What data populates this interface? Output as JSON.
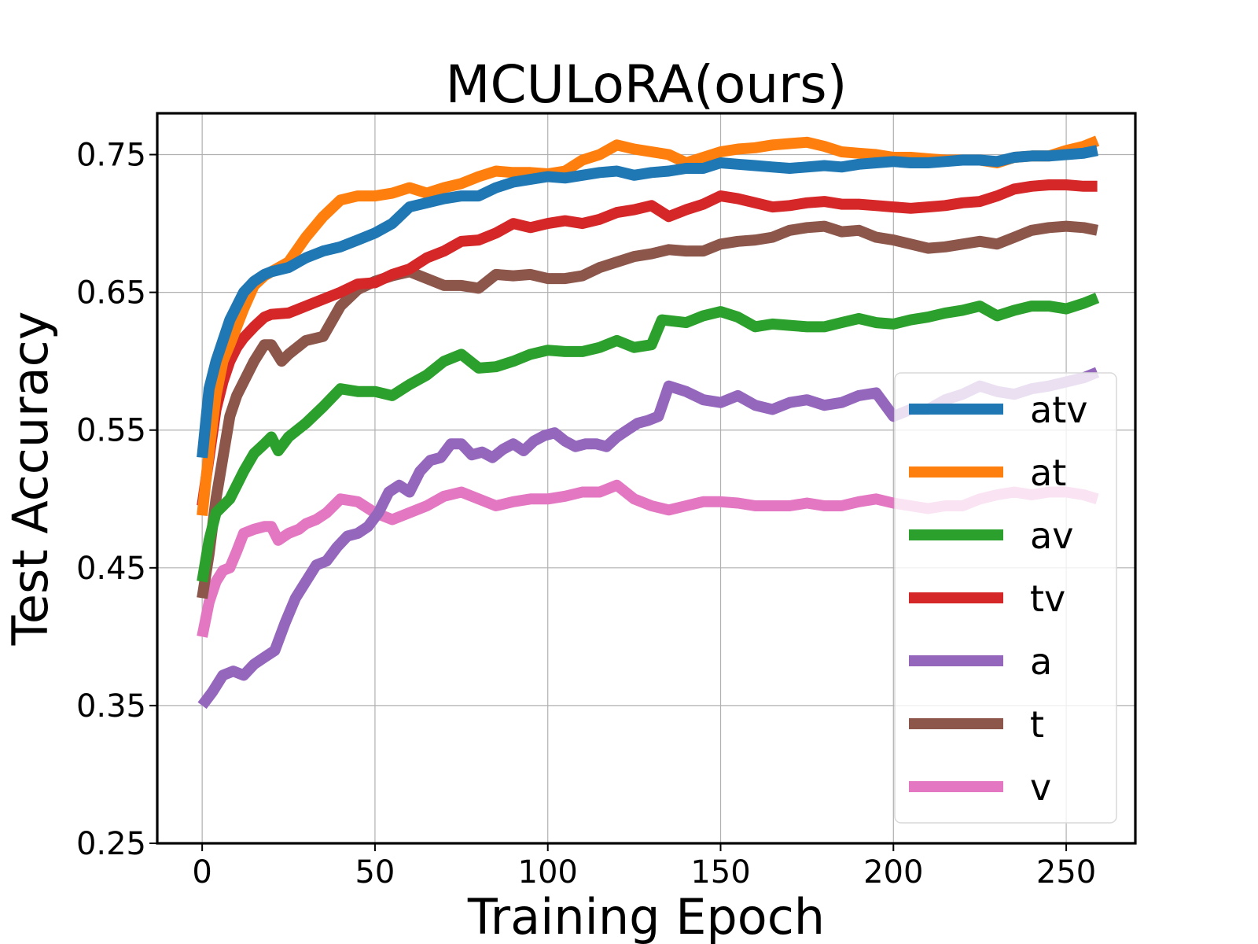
{
  "chart_data": {
    "type": "line",
    "title": "MCULoRA(ours)",
    "xlabel": "Training Epoch",
    "ylabel": "Test Accuracy",
    "xlim": [
      -13,
      270
    ],
    "ylim": [
      0.25,
      0.78
    ],
    "xticks": [
      0,
      50,
      100,
      150,
      200,
      250
    ],
    "xtick_labels": [
      "0",
      "50",
      "100",
      "150",
      "200",
      "250"
    ],
    "yticks": [
      0.25,
      0.35,
      0.45,
      0.55,
      0.65,
      0.75
    ],
    "ytick_labels": [
      "0.25",
      "0.35",
      "0.45",
      "0.55",
      "0.65",
      "0.75"
    ],
    "grid": true,
    "legend_position": "lower-right",
    "series": [
      {
        "name": "atv",
        "color": "#1f77b4",
        "x": [
          0,
          2,
          4,
          6,
          8,
          10,
          12,
          15,
          18,
          20,
          25,
          30,
          35,
          40,
          45,
          50,
          55,
          60,
          65,
          70,
          75,
          80,
          85,
          90,
          95,
          100,
          105,
          110,
          115,
          120,
          125,
          130,
          135,
          140,
          145,
          150,
          155,
          160,
          165,
          170,
          175,
          180,
          185,
          190,
          195,
          200,
          205,
          210,
          215,
          220,
          225,
          230,
          235,
          240,
          245,
          250,
          255,
          259
        ],
        "y": [
          0.53,
          0.58,
          0.6,
          0.615,
          0.63,
          0.64,
          0.65,
          0.658,
          0.663,
          0.665,
          0.668,
          0.675,
          0.68,
          0.683,
          0.688,
          0.693,
          0.7,
          0.712,
          0.715,
          0.718,
          0.72,
          0.72,
          0.726,
          0.73,
          0.732,
          0.734,
          0.733,
          0.735,
          0.737,
          0.738,
          0.735,
          0.737,
          0.738,
          0.74,
          0.74,
          0.744,
          0.743,
          0.742,
          0.741,
          0.74,
          0.741,
          0.742,
          0.741,
          0.743,
          0.744,
          0.745,
          0.744,
          0.744,
          0.745,
          0.746,
          0.746,
          0.745,
          0.748,
          0.749,
          0.749,
          0.75,
          0.751,
          0.753
        ]
      },
      {
        "name": "at",
        "color": "#ff7f0e",
        "x": [
          0,
          2,
          4,
          6,
          8,
          10,
          12,
          15,
          18,
          20,
          25,
          30,
          35,
          40,
          45,
          50,
          55,
          60,
          65,
          70,
          75,
          80,
          85,
          90,
          95,
          100,
          105,
          110,
          115,
          120,
          125,
          130,
          135,
          140,
          145,
          150,
          155,
          160,
          165,
          170,
          175,
          180,
          185,
          190,
          195,
          200,
          205,
          210,
          215,
          220,
          225,
          230,
          235,
          240,
          245,
          250,
          255,
          259
        ],
        "y": [
          0.488,
          0.535,
          0.575,
          0.6,
          0.612,
          0.625,
          0.638,
          0.655,
          0.662,
          0.665,
          0.672,
          0.69,
          0.705,
          0.717,
          0.72,
          0.72,
          0.722,
          0.726,
          0.722,
          0.726,
          0.729,
          0.734,
          0.738,
          0.737,
          0.737,
          0.736,
          0.738,
          0.746,
          0.75,
          0.757,
          0.754,
          0.752,
          0.75,
          0.744,
          0.748,
          0.752,
          0.754,
          0.755,
          0.757,
          0.758,
          0.759,
          0.756,
          0.752,
          0.751,
          0.75,
          0.748,
          0.748,
          0.747,
          0.746,
          0.746,
          0.746,
          0.744,
          0.748,
          0.749,
          0.749,
          0.753,
          0.756,
          0.76
        ]
      },
      {
        "name": "av",
        "color": "#2ca02c",
        "x": [
          0,
          2,
          4,
          6,
          8,
          10,
          12,
          15,
          18,
          20,
          22,
          25,
          30,
          35,
          40,
          45,
          50,
          55,
          60,
          65,
          70,
          75,
          80,
          85,
          90,
          95,
          100,
          105,
          110,
          115,
          120,
          125,
          130,
          133,
          140,
          145,
          150,
          155,
          160,
          165,
          170,
          175,
          180,
          185,
          190,
          195,
          200,
          205,
          210,
          215,
          220,
          225,
          230,
          235,
          240,
          245,
          250,
          255,
          259
        ],
        "y": [
          0.44,
          0.47,
          0.49,
          0.495,
          0.5,
          0.51,
          0.52,
          0.533,
          0.54,
          0.545,
          0.535,
          0.545,
          0.555,
          0.567,
          0.58,
          0.578,
          0.578,
          0.575,
          0.583,
          0.59,
          0.6,
          0.605,
          0.595,
          0.596,
          0.6,
          0.605,
          0.608,
          0.607,
          0.607,
          0.61,
          0.615,
          0.61,
          0.612,
          0.63,
          0.628,
          0.633,
          0.636,
          0.632,
          0.625,
          0.627,
          0.626,
          0.625,
          0.625,
          0.628,
          0.631,
          0.628,
          0.627,
          0.63,
          0.632,
          0.635,
          0.637,
          0.64,
          0.633,
          0.637,
          0.64,
          0.64,
          0.638,
          0.642,
          0.646
        ]
      },
      {
        "name": "tv",
        "color": "#d62728",
        "x": [
          0,
          2,
          4,
          6,
          8,
          10,
          12,
          15,
          18,
          20,
          25,
          30,
          35,
          40,
          45,
          50,
          55,
          60,
          65,
          70,
          75,
          80,
          85,
          90,
          95,
          100,
          105,
          110,
          115,
          120,
          125,
          130,
          135,
          140,
          145,
          150,
          155,
          160,
          165,
          170,
          175,
          180,
          185,
          190,
          195,
          200,
          205,
          210,
          215,
          220,
          225,
          230,
          235,
          240,
          245,
          250,
          255,
          259
        ],
        "y": [
          0.495,
          0.53,
          0.565,
          0.585,
          0.6,
          0.61,
          0.617,
          0.625,
          0.632,
          0.634,
          0.635,
          0.64,
          0.645,
          0.65,
          0.656,
          0.657,
          0.663,
          0.667,
          0.675,
          0.68,
          0.687,
          0.688,
          0.693,
          0.7,
          0.697,
          0.7,
          0.702,
          0.7,
          0.703,
          0.708,
          0.71,
          0.713,
          0.705,
          0.71,
          0.714,
          0.72,
          0.718,
          0.715,
          0.712,
          0.713,
          0.715,
          0.716,
          0.714,
          0.714,
          0.713,
          0.712,
          0.711,
          0.712,
          0.713,
          0.715,
          0.716,
          0.72,
          0.725,
          0.727,
          0.728,
          0.728,
          0.727,
          0.727
        ]
      },
      {
        "name": "a",
        "color": "#9467bd",
        "x": [
          0,
          3,
          6,
          9,
          12,
          15,
          18,
          21,
          24,
          27,
          30,
          33,
          36,
          39,
          42,
          45,
          48,
          51,
          54,
          57,
          60,
          63,
          66,
          69,
          72,
          75,
          78,
          81,
          84,
          87,
          90,
          93,
          96,
          99,
          102,
          105,
          108,
          111,
          114,
          117,
          120,
          123,
          126,
          129,
          132,
          135,
          140,
          145,
          150,
          155,
          160,
          165,
          170,
          175,
          180,
          185,
          190,
          195,
          200,
          205,
          210,
          215,
          220,
          225,
          230,
          235,
          240,
          245,
          250,
          255,
          259
        ],
        "y": [
          0.35,
          0.36,
          0.372,
          0.375,
          0.372,
          0.38,
          0.385,
          0.39,
          0.41,
          0.428,
          0.44,
          0.452,
          0.455,
          0.465,
          0.473,
          0.475,
          0.48,
          0.49,
          0.505,
          0.51,
          0.505,
          0.52,
          0.528,
          0.53,
          0.54,
          0.54,
          0.532,
          0.534,
          0.53,
          0.536,
          0.54,
          0.535,
          0.542,
          0.546,
          0.548,
          0.542,
          0.538,
          0.54,
          0.54,
          0.538,
          0.545,
          0.55,
          0.555,
          0.557,
          0.56,
          0.582,
          0.578,
          0.572,
          0.57,
          0.575,
          0.568,
          0.565,
          0.57,
          0.572,
          0.568,
          0.57,
          0.575,
          0.577,
          0.56,
          0.565,
          0.565,
          0.572,
          0.576,
          0.582,
          0.578,
          0.576,
          0.58,
          0.582,
          0.585,
          0.588,
          0.592
        ]
      },
      {
        "name": "t",
        "color": "#8c564b",
        "x": [
          0,
          2,
          4,
          6,
          8,
          10,
          12,
          15,
          18,
          20,
          23,
          25,
          30,
          35,
          40,
          45,
          50,
          55,
          60,
          65,
          70,
          75,
          80,
          85,
          90,
          95,
          100,
          105,
          110,
          115,
          120,
          125,
          130,
          135,
          140,
          145,
          150,
          155,
          160,
          165,
          170,
          175,
          180,
          185,
          190,
          195,
          200,
          205,
          210,
          215,
          220,
          225,
          230,
          235,
          240,
          245,
          250,
          255,
          259
        ],
        "y": [
          0.428,
          0.46,
          0.5,
          0.53,
          0.56,
          0.575,
          0.585,
          0.6,
          0.612,
          0.612,
          0.6,
          0.605,
          0.615,
          0.618,
          0.64,
          0.652,
          0.658,
          0.662,
          0.665,
          0.66,
          0.655,
          0.655,
          0.653,
          0.663,
          0.662,
          0.663,
          0.66,
          0.66,
          0.662,
          0.668,
          0.672,
          0.676,
          0.678,
          0.681,
          0.68,
          0.68,
          0.685,
          0.687,
          0.688,
          0.69,
          0.695,
          0.697,
          0.698,
          0.694,
          0.695,
          0.69,
          0.688,
          0.685,
          0.682,
          0.683,
          0.685,
          0.687,
          0.685,
          0.69,
          0.695,
          0.697,
          0.698,
          0.697,
          0.695
        ]
      },
      {
        "name": "v",
        "color": "#e377c2",
        "x": [
          0,
          2,
          4,
          6,
          8,
          10,
          12,
          15,
          18,
          20,
          22,
          25,
          28,
          30,
          33,
          36,
          40,
          45,
          50,
          55,
          60,
          65,
          70,
          75,
          80,
          85,
          90,
          95,
          100,
          105,
          110,
          115,
          120,
          125,
          130,
          135,
          140,
          145,
          150,
          155,
          160,
          165,
          170,
          175,
          180,
          185,
          190,
          195,
          200,
          205,
          210,
          215,
          220,
          225,
          230,
          235,
          240,
          245,
          250,
          255,
          259
        ],
        "y": [
          0.4,
          0.425,
          0.44,
          0.448,
          0.45,
          0.462,
          0.475,
          0.478,
          0.48,
          0.48,
          0.47,
          0.475,
          0.478,
          0.482,
          0.485,
          0.49,
          0.5,
          0.498,
          0.49,
          0.485,
          0.49,
          0.495,
          0.502,
          0.505,
          0.5,
          0.495,
          0.498,
          0.5,
          0.5,
          0.502,
          0.505,
          0.505,
          0.51,
          0.5,
          0.495,
          0.492,
          0.495,
          0.498,
          0.498,
          0.497,
          0.495,
          0.495,
          0.495,
          0.497,
          0.495,
          0.495,
          0.498,
          0.5,
          0.497,
          0.495,
          0.493,
          0.495,
          0.495,
          0.5,
          0.503,
          0.505,
          0.503,
          0.505,
          0.505,
          0.503,
          0.5
        ]
      }
    ]
  }
}
